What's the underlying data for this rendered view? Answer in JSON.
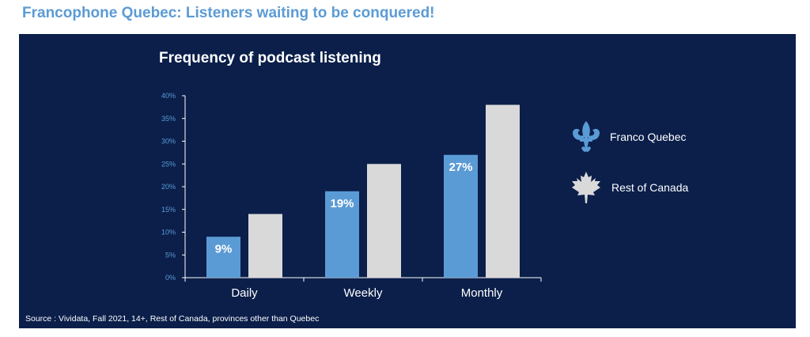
{
  "slide_title": "Francophone Quebec: Listeners waiting to be conquered!",
  "colors": {
    "panel_bg": "#0b1f4a",
    "franco_quebec": "#5b9bd5",
    "rest_of_canada": "#d9d9d9",
    "axis_text": "#5b9bd5",
    "title_text": "#5b9bd5"
  },
  "legend": {
    "items": [
      {
        "label": "Franco Quebec",
        "icon": "fleur-de-lis-icon"
      },
      {
        "label": "Rest of Canada",
        "icon": "maple-leaf-icon"
      }
    ]
  },
  "source": "Source : Vividata, Fall 2021, 14+, Rest of Canada, provinces other than Quebec",
  "chart_data": {
    "type": "bar",
    "title": "Frequency of podcast listening",
    "categories": [
      "Daily",
      "Weekly",
      "Monthly"
    ],
    "series": [
      {
        "name": "Franco Quebec",
        "values": [
          9,
          19,
          27
        ],
        "labels": [
          "9%",
          "19%",
          "27%"
        ]
      },
      {
        "name": "Rest of Canada",
        "values": [
          14,
          25,
          38
        ]
      }
    ],
    "ylim": [
      0,
      40
    ],
    "yticks": [
      "0%",
      "5%",
      "10%",
      "15%",
      "20%",
      "25%",
      "30%",
      "35%",
      "40%"
    ],
    "grid": false,
    "legend_position": "right"
  }
}
